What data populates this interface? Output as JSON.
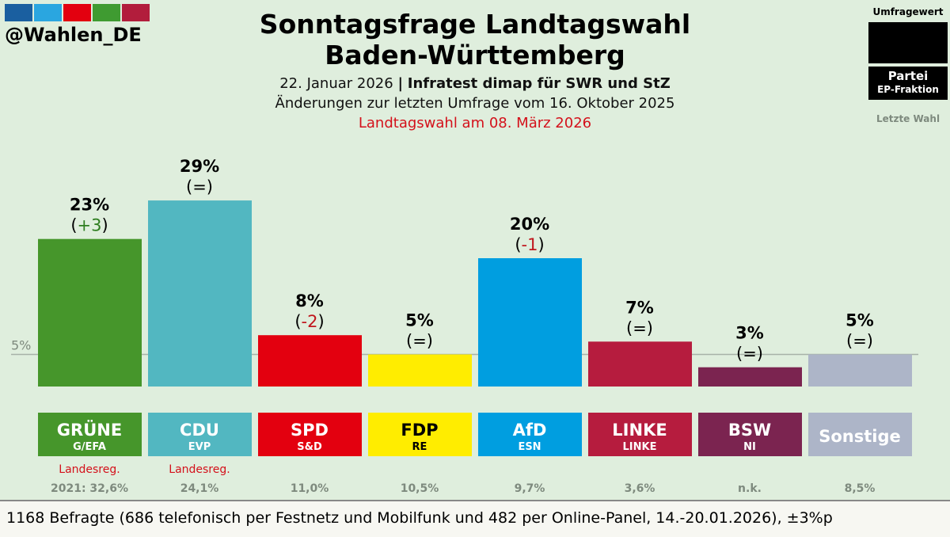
{
  "header": {
    "handle": "@Wahlen_DE",
    "logo_colors": [
      "#1a5fa0",
      "#2aa6e0",
      "#e3000f",
      "#3f9b31",
      "#b21d3c"
    ],
    "title_line1": "Sonntagsfrage Landtagswahl",
    "title_line2": "Baden-Württemberg",
    "date": "22. Januar 2026",
    "separator": "|",
    "institute": "Infratest dimap für SWR und StZ",
    "changes_note": "Änderungen zur letzten Umfrage vom 16. Oktober 2025",
    "election_note": "Landtagswahl am 08. März 2026"
  },
  "legend": {
    "value_label": "Umfragewert",
    "party_label": "Partei",
    "fraction_label": "EP-Fraktion",
    "last_label": "Letzte Wahl"
  },
  "chart_data": {
    "type": "bar",
    "threshold": 5,
    "threshold_label": "5%",
    "ylim": [
      0,
      30
    ],
    "categories": [
      "GRÜNE",
      "CDU",
      "SPD",
      "FDP",
      "AfD",
      "LINKE",
      "BSW",
      "Sonstige"
    ],
    "values": [
      23,
      29,
      8,
      5,
      20,
      7,
      3,
      5
    ],
    "value_labels": [
      "23%",
      "29%",
      "8%",
      "5%",
      "20%",
      "7%",
      "3%",
      "5%"
    ],
    "changes": [
      "(+3)",
      "(=)",
      "(-2)",
      "(=)",
      "(-1)",
      "(=)",
      "(=)",
      "(=)"
    ],
    "change_inner": [
      "+3",
      "=",
      "-2",
      "=",
      "-1",
      "=",
      "=",
      "="
    ],
    "change_colors": [
      "#2e7d1f",
      "#000000",
      "#c0161d",
      "#000000",
      "#c0161d",
      "#000000",
      "#000000",
      "#000000"
    ],
    "ep_groups": [
      "G/EFA",
      "EVP",
      "S&D",
      "RE",
      "ESN",
      "LINKE",
      "NI",
      ""
    ],
    "colors": [
      "#46962b",
      "#52b7c1",
      "#e3000f",
      "#ffed00",
      "#009ee0",
      "#b61c3e",
      "#7b2450",
      "#adb5c8"
    ],
    "label_text_colors": [
      "#ffffff",
      "#ffffff",
      "#ffffff",
      "#000000",
      "#ffffff",
      "#ffffff",
      "#ffffff",
      "#ffffff"
    ],
    "government": [
      "Landesreg.",
      "Landesreg.",
      "",
      "",
      "",
      "",
      "",
      ""
    ],
    "last_election": [
      "2021: 32,6%",
      "24,1%",
      "11,0%",
      "10,5%",
      "9,7%",
      "3,6%",
      "n.k.",
      "8,5%"
    ]
  },
  "footer": {
    "text": "1168 Befragte (686 telefonisch per Festnetz und Mobilfunk und 482 per Online-Panel, 14.-20.01.2026), ±3%p"
  }
}
